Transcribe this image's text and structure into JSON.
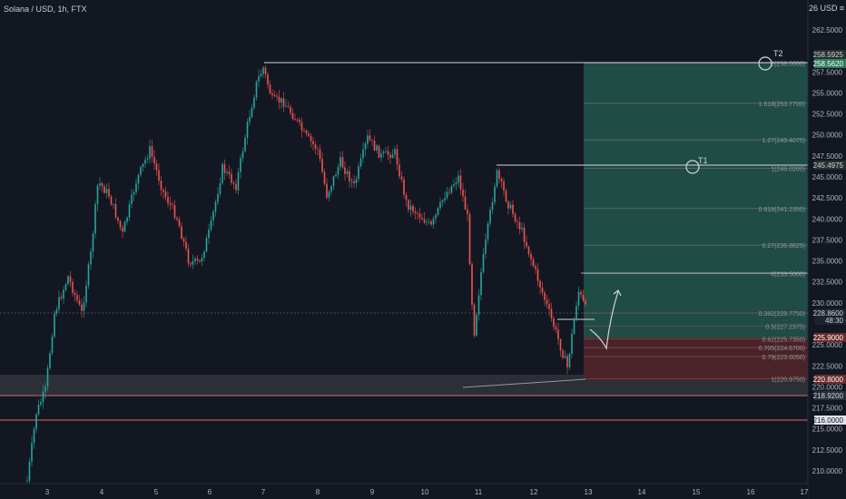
{
  "chart": {
    "symbol_title": "Solana / USD, 1h, FTX",
    "currency_label": "26 USD ¤",
    "y_ticks": [
      "262.5000",
      "257.5000",
      "255.0000",
      "252.5000",
      "250.0000",
      "247.5000",
      "245.0000",
      "242.5000",
      "240.0000",
      "237.5000",
      "235.0000",
      "232.5000",
      "230.0000",
      "225.0000",
      "222.5000",
      "220.0000",
      "217.5000",
      "215.0000",
      "212.5000",
      "210.0000"
    ],
    "x_ticks": [
      "3",
      "4",
      "5",
      "6",
      "7",
      "8",
      "9",
      "10",
      "11",
      "12",
      "13",
      "14",
      "15",
      "16",
      "17"
    ],
    "price_badges": [
      {
        "text": "258.5925",
        "bg": "#26312e",
        "fg": "#d1d4dc"
      },
      {
        "text": "258.5620",
        "bg": "#2f7d5f",
        "fg": "#ffffff"
      },
      {
        "text": "245.4975",
        "bg": "#26312e",
        "fg": "#d1d4dc"
      },
      {
        "text": "228.8600",
        "bg": "#1e222d",
        "fg": "#d1d4dc"
      },
      {
        "text": "48:30",
        "bg": "#1e222d",
        "fg": "#d1d4dc"
      },
      {
        "text": "225.9000",
        "bg": "#6b2c2c",
        "fg": "#ffffff"
      },
      {
        "text": "220.8000",
        "bg": "#6b2c2c",
        "fg": "#ffffff"
      },
      {
        "text": "218.9200",
        "bg": "#2a2e39",
        "fg": "#d1d4dc"
      },
      {
        "text": "216.0000",
        "bg": "#e0e3eb",
        "fg": "#131722"
      }
    ],
    "fib_levels": [
      {
        "label": "2(258.5600)",
        "price": 258.56
      },
      {
        "label": "1.618(253.7700)",
        "price": 253.77
      },
      {
        "label": "1.27(249.4075)",
        "price": 249.41
      },
      {
        "label": "1(246.0200)",
        "price": 246.02
      },
      {
        "label": "0.618(241.2350)",
        "price": 241.24
      },
      {
        "label": "0.27(236.8825)",
        "price": 236.88
      },
      {
        "label": "0(233.5000)",
        "price": 233.5
      },
      {
        "label": "0.382(228.7750)",
        "price": 228.78
      },
      {
        "label": "0.5(227.2375)",
        "price": 227.24
      },
      {
        "label": "0.62(225.7350)",
        "price": 225.74
      },
      {
        "label": "0.705(224.6700)",
        "price": 224.67
      },
      {
        "label": "0.79(223.6050)",
        "price": 223.61
      },
      {
        "label": "1(220.9750)",
        "price": 220.98
      }
    ],
    "annotations": {
      "target_1": "T1",
      "target_2": "T2"
    },
    "colors": {
      "background": "#131722",
      "candle_up": "#26a69a",
      "candle_down": "#ef5350",
      "profit_zone": "#1f4c45",
      "loss_zone": "#4a2329",
      "demand_zone": "#2c2f36",
      "support_line": "#d46b6b",
      "text": "#b2b5be"
    }
  }
}
